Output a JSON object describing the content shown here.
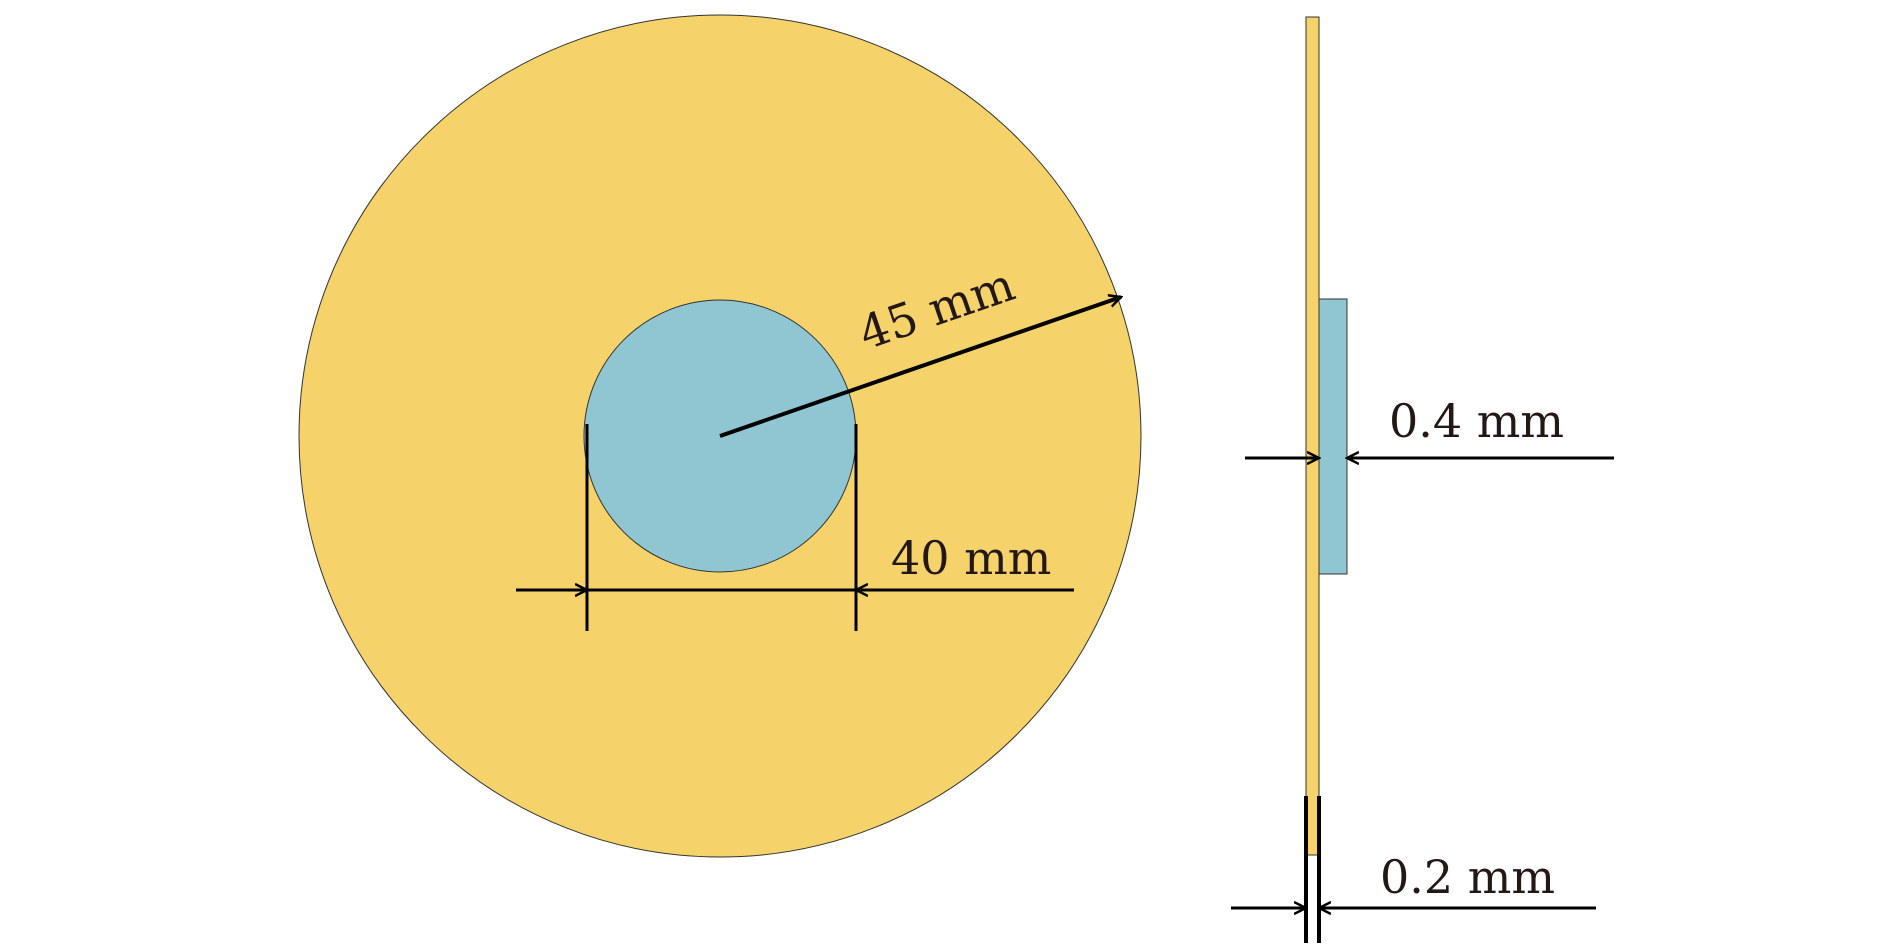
{
  "colors": {
    "disk": "#F5D36A",
    "patch": "#90C5D2",
    "line": "#000000"
  },
  "front_view": {
    "radius_label": "45 mm",
    "diameter_label": "40 mm"
  },
  "side_view": {
    "patch_thickness_label": "0.4 mm",
    "disk_thickness_label": "0.2 mm"
  }
}
